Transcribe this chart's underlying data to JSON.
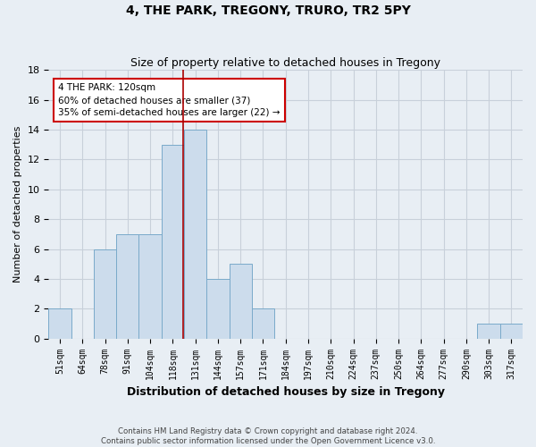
{
  "title": "4, THE PARK, TREGONY, TRURO, TR2 5PY",
  "subtitle": "Size of property relative to detached houses in Tregony",
  "xlabel": "Distribution of detached houses by size in Tregony",
  "ylabel": "Number of detached properties",
  "footer": "Contains HM Land Registry data © Crown copyright and database right 2024.\nContains public sector information licensed under the Open Government Licence v3.0.",
  "bins": [
    "51sqm",
    "64sqm",
    "78sqm",
    "91sqm",
    "104sqm",
    "118sqm",
    "131sqm",
    "144sqm",
    "157sqm",
    "171sqm",
    "184sqm",
    "197sqm",
    "210sqm",
    "224sqm",
    "237sqm",
    "250sqm",
    "264sqm",
    "277sqm",
    "290sqm",
    "303sqm",
    "317sqm"
  ],
  "values": [
    2,
    0,
    6,
    7,
    7,
    13,
    14,
    4,
    5,
    2,
    0,
    0,
    0,
    0,
    0,
    0,
    0,
    0,
    0,
    1,
    1
  ],
  "bar_color": "#ccdcec",
  "bar_edge_color": "#7aaaca",
  "subject_line_index": 5,
  "annotation_text": "4 THE PARK: 120sqm\n60% of detached houses are smaller (37)\n35% of semi-detached houses are larger (22) →",
  "annotation_box_color": "white",
  "annotation_box_edge": "#cc0000",
  "subject_line_color": "#aa0000",
  "ylim": [
    0,
    18
  ],
  "yticks": [
    0,
    2,
    4,
    6,
    8,
    10,
    12,
    14,
    16,
    18
  ],
  "grid_color": "#c8d0da",
  "background_color": "#e8eef4",
  "plot_bg_color": "#e8eef4"
}
